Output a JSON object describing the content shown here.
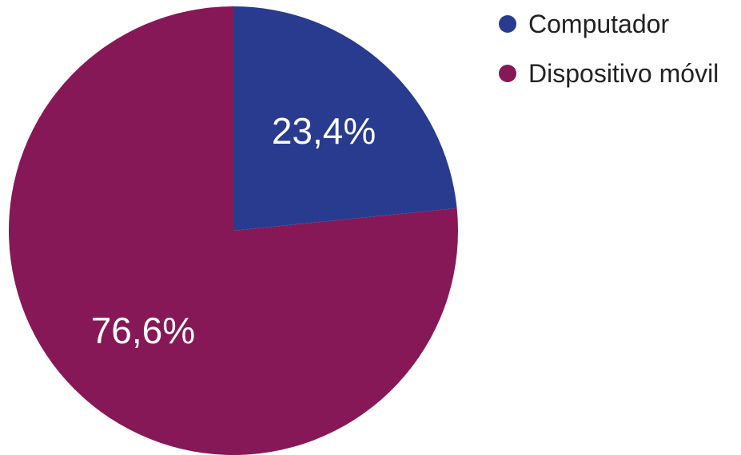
{
  "chart_data": {
    "type": "pie",
    "labels": [
      "Computador",
      "Dispositivo móvil"
    ],
    "values": [
      23.4,
      76.6
    ],
    "value_labels": [
      "23,4%",
      "76,6%"
    ],
    "colors": [
      "#283b8f",
      "#871857"
    ],
    "start": "12 o'clock, clockwise",
    "legend_position": "top-right"
  }
}
